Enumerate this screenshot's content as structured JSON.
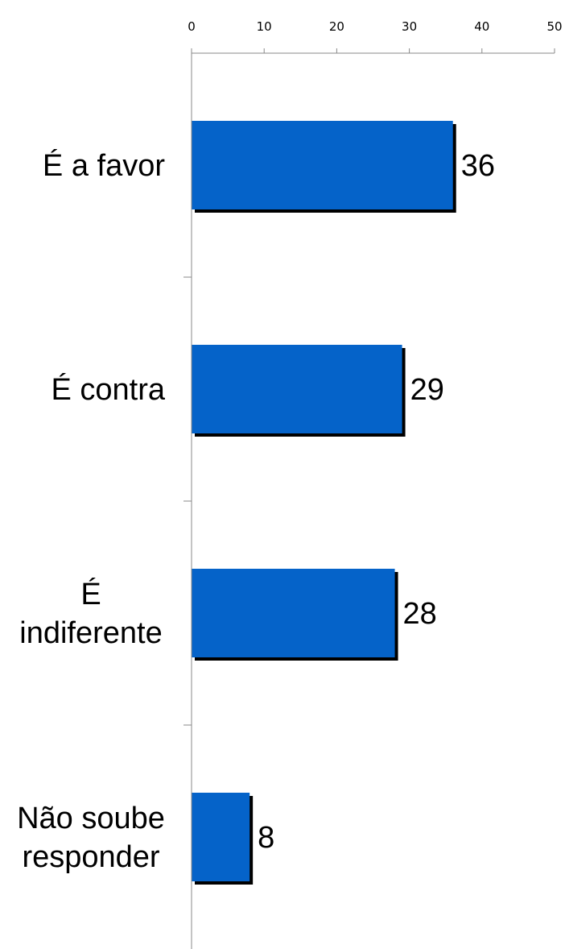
{
  "chart_data": {
    "type": "bar",
    "orientation": "horizontal",
    "categories": [
      [
        "É a favor"
      ],
      [
        "É contra"
      ],
      [
        "É",
        "indiferente"
      ],
      [
        "Não soube",
        "responder"
      ]
    ],
    "values": [
      36,
      29,
      28,
      8
    ],
    "xlim": [
      0,
      50
    ],
    "xticks": [
      0,
      10,
      20,
      30,
      40,
      50
    ],
    "x_axis_position": "top",
    "grid": false,
    "bar_color": "#0563C9",
    "shadow_color": "#000000",
    "data_labels": true
  }
}
